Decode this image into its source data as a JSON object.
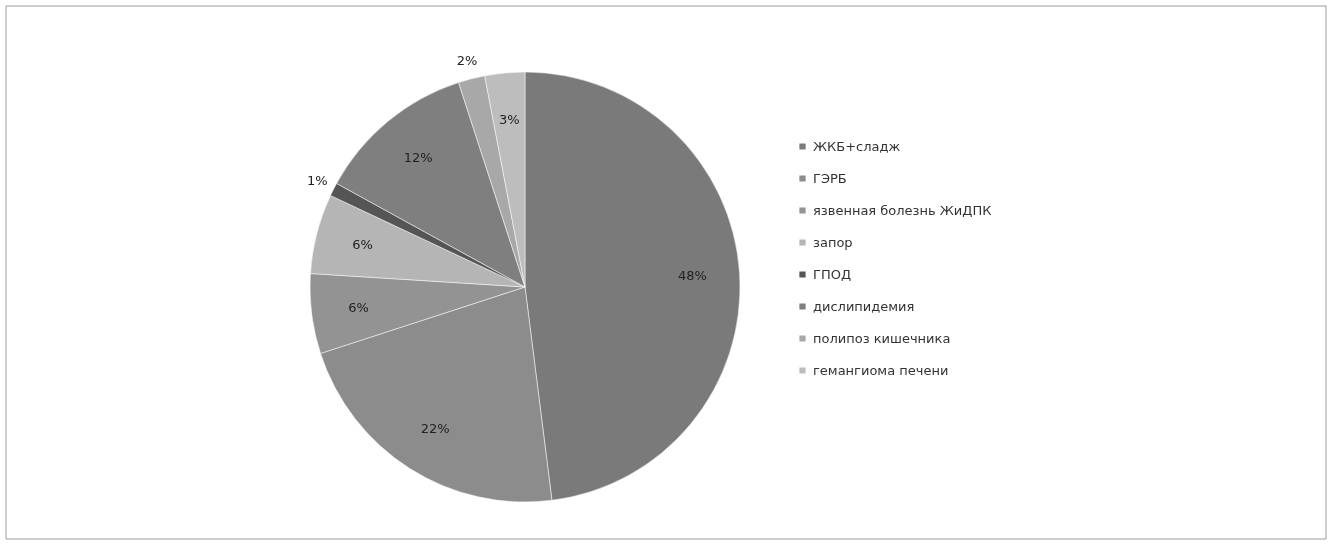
{
  "chart_data": {
    "type": "pie",
    "categories": [
      "ЖКБ+сладж",
      "ГЭРБ",
      "язвенная болезнь ЖиДПК",
      "запор",
      "ГПОД",
      "дислипидемия",
      "полипоз кишечника",
      "гемангиома печени"
    ],
    "values": [
      48,
      22,
      6,
      6,
      1,
      12,
      2,
      3
    ],
    "colors": [
      "#7a7a7a",
      "#8c8c8c",
      "#939393",
      "#b5b5b5",
      "#555555",
      "#7f7f7f",
      "#a8a8a8",
      "#bdbdbd"
    ],
    "value_labels": [
      "48%",
      "22%",
      "6%",
      "6%",
      "1%",
      "12%",
      "2%",
      "3%"
    ],
    "legend": "right"
  }
}
